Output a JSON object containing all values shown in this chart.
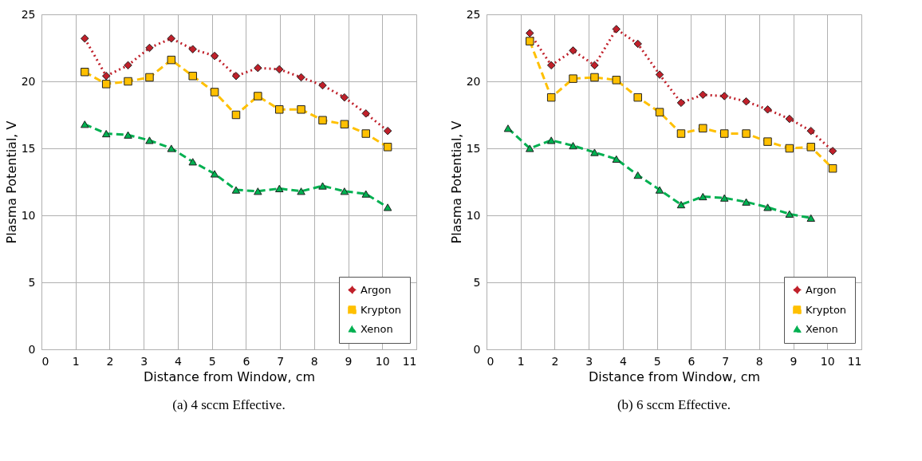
{
  "chart_data": [
    {
      "type": "line",
      "title": "(a) 4 sccm Effective.",
      "xlabel": "Distance from Window, cm",
      "ylabel": "Plasma Potential, V",
      "xlim": [
        0,
        11
      ],
      "xticks": [
        0,
        1,
        2,
        3,
        4,
        5,
        6,
        7,
        8,
        9,
        10,
        11
      ],
      "ylim": [
        0,
        25
      ],
      "yticks": [
        0,
        5,
        10,
        15,
        20,
        25
      ],
      "grid": true,
      "legend": "bottom right",
      "series": [
        {
          "name": "Argon",
          "color": "#c0202a",
          "marker": "diamond",
          "line_style": "dotted",
          "x": [
            1.27,
            1.9,
            2.54,
            3.17,
            3.81,
            4.44,
            5.08,
            5.71,
            6.35,
            6.98,
            7.62,
            8.25,
            8.89,
            9.52,
            10.16
          ],
          "values": [
            23.2,
            20.4,
            21.2,
            22.5,
            23.2,
            22.4,
            21.9,
            20.4,
            21.0,
            20.9,
            20.3,
            19.7,
            18.8,
            17.6,
            16.3
          ]
        },
        {
          "name": "Krypton",
          "color": "#ffc000",
          "marker": "square",
          "line_style": "dashed",
          "x": [
            1.27,
            1.9,
            2.54,
            3.17,
            3.81,
            4.44,
            5.08,
            5.71,
            6.35,
            6.98,
            7.62,
            8.25,
            8.89,
            9.52,
            10.16
          ],
          "values": [
            20.7,
            19.8,
            20.0,
            20.3,
            21.6,
            20.4,
            19.2,
            17.5,
            18.9,
            17.9,
            17.9,
            17.1,
            16.8,
            16.1,
            15.1
          ]
        },
        {
          "name": "Xenon",
          "color": "#00b050",
          "marker": "triangle",
          "line_style": "dashed",
          "x": [
            1.27,
            1.9,
            2.54,
            3.17,
            3.81,
            4.44,
            5.08,
            5.71,
            6.35,
            6.98,
            7.62,
            8.25,
            8.89,
            9.52,
            10.16
          ],
          "values": [
            16.8,
            16.1,
            16.0,
            15.6,
            15.0,
            14.0,
            13.1,
            11.9,
            11.8,
            12.0,
            11.8,
            12.2,
            11.8,
            11.6,
            10.6
          ]
        }
      ]
    },
    {
      "type": "line",
      "title": "(b) 6 sccm Effective.",
      "xlabel": "Distance from Window, cm",
      "ylabel": "Plasma Potential, V",
      "xlim": [
        0,
        11
      ],
      "xticks": [
        0,
        1,
        2,
        3,
        4,
        5,
        6,
        7,
        8,
        9,
        10,
        11
      ],
      "ylim": [
        0,
        25
      ],
      "yticks": [
        0,
        5,
        10,
        15,
        20,
        25
      ],
      "grid": true,
      "legend": "bottom right",
      "series": [
        {
          "name": "Argon",
          "color": "#c0202a",
          "marker": "diamond",
          "line_style": "dotted",
          "x": [
            1.27,
            1.9,
            2.54,
            3.17,
            3.81,
            4.44,
            5.08,
            5.71,
            6.35,
            6.98,
            7.62,
            8.25,
            8.89,
            9.52,
            10.16
          ],
          "values": [
            23.6,
            21.2,
            22.3,
            21.2,
            23.9,
            22.8,
            20.5,
            18.4,
            19.0,
            18.9,
            18.5,
            17.9,
            17.2,
            16.3,
            14.8
          ]
        },
        {
          "name": "Krypton",
          "color": "#ffc000",
          "marker": "square",
          "line_style": "dashed",
          "x": [
            1.27,
            1.9,
            2.54,
            3.17,
            3.81,
            4.44,
            5.08,
            5.71,
            6.35,
            6.98,
            7.62,
            8.25,
            8.89,
            9.52,
            10.16
          ],
          "values": [
            23.0,
            18.8,
            20.2,
            20.3,
            20.1,
            18.8,
            17.7,
            16.1,
            16.5,
            16.1,
            16.1,
            15.5,
            15.0,
            15.1,
            13.5
          ]
        },
        {
          "name": "Xenon",
          "color": "#00b050",
          "marker": "triangle",
          "line_style": "dashed",
          "x": [
            0.63,
            1.27,
            1.9,
            2.54,
            3.17,
            3.81,
            4.44,
            5.08,
            5.71,
            6.35,
            6.98,
            7.62,
            8.25,
            8.89,
            9.52
          ],
          "values": [
            16.5,
            15.0,
            15.6,
            15.2,
            14.7,
            14.2,
            13.0,
            11.9,
            10.8,
            11.4,
            11.3,
            11.0,
            10.6,
            10.1,
            9.8
          ]
        }
      ]
    }
  ]
}
